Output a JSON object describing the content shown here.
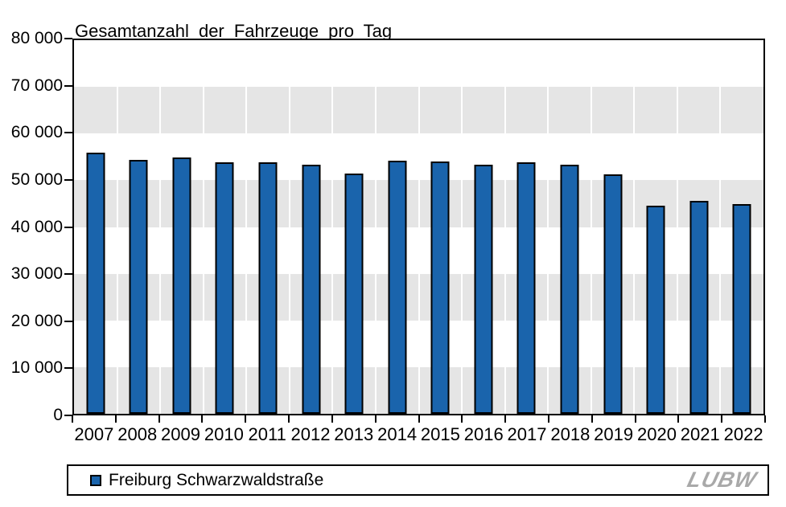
{
  "chart_data": {
    "type": "bar",
    "title": "Gesamtanzahl der Fahrzeuge pro Tag",
    "categories": [
      "2007",
      "2008",
      "2009",
      "2010",
      "2011",
      "2012",
      "2013",
      "2014",
      "2015",
      "2016",
      "2017",
      "2018",
      "2019",
      "2020",
      "2021",
      "2022"
    ],
    "series": [
      {
        "name": "Freiburg Schwarzwaldstraße",
        "values": [
          56000,
          54300,
          54900,
          53800,
          53800,
          53300,
          51500,
          54200,
          54100,
          53400,
          53900,
          53400,
          51300,
          44600,
          45600,
          44900
        ]
      }
    ],
    "xlabel": "",
    "ylabel": "",
    "ylim": [
      0,
      80000
    ],
    "ytick_step": 10000,
    "ytick_labels": [
      "0",
      "10 000",
      "20 000",
      "30 000",
      "40 000",
      "50 000",
      "60 000",
      "70 000",
      "80 000"
    ],
    "grid": "alternating horizontal bands white/gray with white vertical separators at category boundaries",
    "legend_position": "bottom",
    "colors": {
      "bar_fill": "#1a64ac",
      "bar_border": "#000000",
      "band_gray": "#e5e5e5",
      "axis": "#000000"
    }
  },
  "legend": {
    "label": "Freiburg Schwarzwaldstraße",
    "swatch_color": "#1a64ac"
  },
  "logo": {
    "text": "LUBW",
    "color": "#a9a9a9"
  }
}
